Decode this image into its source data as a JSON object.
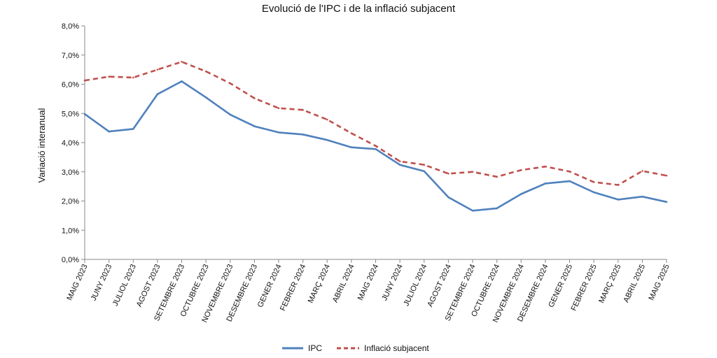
{
  "chart_data": {
    "type": "line",
    "title": "Evolució de l'IPC i de la inflació subjacent",
    "xlabel": "",
    "ylabel": "Variació interanual",
    "ylim": [
      0,
      8
    ],
    "yticks": [
      "0,0%",
      "1,0%",
      "2,0%",
      "3,0%",
      "4,0%",
      "5,0%",
      "6,0%",
      "7,0%",
      "8,0%"
    ],
    "categories": [
      "MAIG 2023",
      "JUNY 2023",
      "JULIOL 2023",
      "AGOST 2023",
      "SETEMBRE 2023",
      "OCTUBRE 2023",
      "NOVEMBRE 2023",
      "DESEMBRE 2023",
      "GENER 2024",
      "FEBRER 2024",
      "MARÇ 2024",
      "ABRIL 2024",
      "MAIG 2024",
      "JUNY 2024",
      "JULIOL 2024",
      "AGOST 2024",
      "SETEMBRE 2024",
      "OCTUBRE 2024",
      "NOVEMBRE 2024",
      "DESEMBRE 2024",
      "GENER 2025",
      "FEBRER 2025",
      "MARÇ 2025",
      "ABRIL 2025",
      "MAIG 2025"
    ],
    "series": [
      {
        "name": "IPC",
        "color": "#4F81BD",
        "style": "solid",
        "values": [
          4.98,
          4.38,
          4.47,
          5.66,
          6.1,
          5.55,
          4.96,
          4.56,
          4.35,
          4.28,
          4.09,
          3.84,
          3.78,
          3.24,
          3.02,
          2.13,
          1.67,
          1.75,
          2.24,
          2.6,
          2.68,
          2.3,
          2.05,
          2.15,
          1.97
        ]
      },
      {
        "name": "Inflació subjacent",
        "color": "#C0504D",
        "style": "dashed",
        "values": [
          6.13,
          6.26,
          6.23,
          6.5,
          6.77,
          6.44,
          6.03,
          5.52,
          5.18,
          5.12,
          4.79,
          4.32,
          3.89,
          3.36,
          3.24,
          2.94,
          3.0,
          2.83,
          3.06,
          3.18,
          3.01,
          2.65,
          2.55,
          3.03,
          2.87
        ]
      }
    ],
    "grid": false,
    "legend": "bottom"
  }
}
